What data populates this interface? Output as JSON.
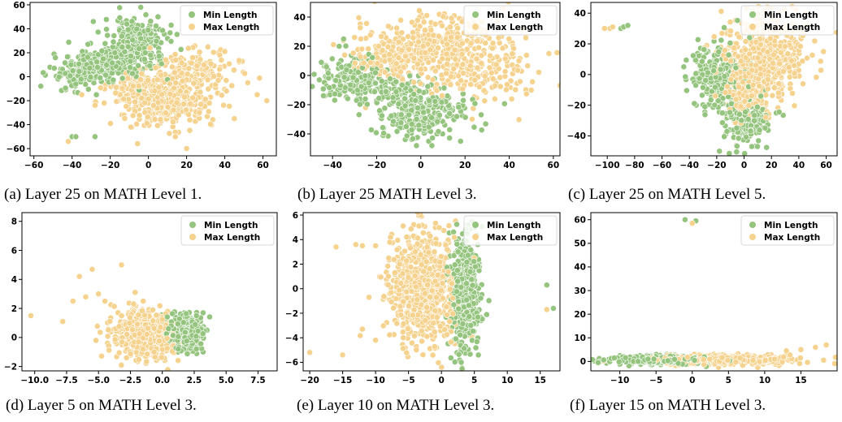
{
  "colors": {
    "min": "#94c47d",
    "max": "#f5d28e",
    "edge": "#ffffff"
  },
  "legend": [
    "Min Length",
    "Max Length"
  ],
  "chart_data": [
    {
      "type": "scatter",
      "caption": "(a) Layer 25 on MATH Level 1.",
      "xlim": [
        -62,
        67
      ],
      "ylim": [
        -66,
        62
      ],
      "xticks": [
        -60,
        -40,
        -20,
        0,
        20,
        40,
        60
      ],
      "yticks": [
        -60,
        -40,
        -20,
        0,
        20,
        40,
        60
      ],
      "tick_labels_x": [
        "−60",
        "−40",
        "−20",
        "0",
        "20",
        "40",
        "60"
      ],
      "tick_labels_y": [
        "−60",
        "−40",
        "−20",
        "0",
        "20",
        "40",
        "60"
      ],
      "series": [
        {
          "name": "Min Length",
          "n": 520,
          "clusters": [
            {
              "cx": -20,
              "cy": 12,
              "sx": 10,
              "sy": 8,
              "w": 0.45
            },
            {
              "cx": -5,
              "cy": 30,
              "sx": 8,
              "sy": 10,
              "w": 0.35
            },
            {
              "cx": -38,
              "cy": 2,
              "sx": 7,
              "sy": 6,
              "w": 0.2
            }
          ],
          "extra": [
            [
              -4,
              58
            ],
            [
              -40,
              -50
            ],
            [
              -38,
              -50
            ],
            [
              -28,
              -50
            ],
            [
              -54,
              2
            ],
            [
              5,
              50
            ]
          ]
        },
        {
          "name": "Max Length",
          "n": 560,
          "clusters": [
            {
              "cx": 10,
              "cy": -20,
              "sx": 12,
              "sy": 12,
              "w": 0.55
            },
            {
              "cx": 25,
              "cy": 5,
              "sx": 12,
              "sy": 10,
              "w": 0.3
            },
            {
              "cx": -10,
              "cy": -10,
              "sx": 8,
              "sy": 8,
              "w": 0.15
            }
          ],
          "extra": [
            [
              -42,
              -54
            ],
            [
              20,
              -60
            ],
            [
              45,
              -35
            ],
            [
              62,
              -20
            ],
            [
              57,
              -15
            ],
            [
              52,
              -5
            ]
          ]
        }
      ]
    },
    {
      "type": "scatter",
      "caption": "(b) Layer 25 MATH Level 3.",
      "xlim": [
        -50,
        63
      ],
      "ylim": [
        -55,
        50
      ],
      "xticks": [
        -40,
        -20,
        0,
        20,
        40,
        60
      ],
      "yticks": [
        -40,
        -20,
        0,
        20,
        40
      ],
      "tick_labels_x": [
        "−40",
        "−20",
        "0",
        "20",
        "40",
        "60"
      ],
      "tick_labels_y": [
        "−40",
        "−20",
        "0",
        "20",
        "40"
      ],
      "series": [
        {
          "name": "Min Length",
          "n": 480,
          "clusters": [
            {
              "cx": -30,
              "cy": -3,
              "sx": 8,
              "sy": 8,
              "w": 0.4
            },
            {
              "cx": 0,
              "cy": -25,
              "sx": 10,
              "sy": 9,
              "w": 0.45
            },
            {
              "cx": -10,
              "cy": -10,
              "sx": 6,
              "sy": 6,
              "w": 0.15
            }
          ],
          "extra": [
            [
              -37,
              20
            ],
            [
              -35,
              25
            ],
            [
              -2,
              -48
            ],
            [
              5,
              -48
            ],
            [
              18,
              -45
            ],
            [
              -46,
              -3
            ]
          ]
        },
        {
          "name": "Max Length",
          "n": 620,
          "clusters": [
            {
              "cx": 5,
              "cy": 20,
              "sx": 16,
              "sy": 10,
              "w": 0.5
            },
            {
              "cx": 25,
              "cy": 5,
              "sx": 14,
              "sy": 12,
              "w": 0.35
            },
            {
              "cx": -15,
              "cy": 12,
              "sx": 8,
              "sy": 8,
              "w": 0.15
            }
          ],
          "extra": [
            [
              58,
              15
            ],
            [
              50,
              -10
            ],
            [
              0,
              42
            ],
            [
              -25,
              -22
            ]
          ]
        }
      ]
    },
    {
      "type": "scatter",
      "caption": "(c) Layer 25 on MATH Level 5.",
      "xlim": [
        -112,
        68
      ],
      "ylim": [
        -53,
        47
      ],
      "xticks": [
        -100,
        -80,
        -60,
        -40,
        -20,
        0,
        20,
        40,
        60
      ],
      "yticks": [
        -40,
        -20,
        0,
        20,
        40
      ],
      "tick_labels_x": [
        "−100",
        "−80",
        "−60",
        "−40",
        "−20",
        "0",
        "20",
        "40",
        "60"
      ],
      "tick_labels_y": [
        "−40",
        "−20",
        "0",
        "20",
        "40"
      ],
      "series": [
        {
          "name": "Min Length",
          "n": 420,
          "clusters": [
            {
              "cx": -20,
              "cy": 0,
              "sx": 10,
              "sy": 10,
              "w": 0.55
            },
            {
              "cx": 0,
              "cy": -30,
              "sx": 9,
              "sy": 8,
              "w": 0.45
            }
          ],
          "extra": [
            [
              -88,
              31
            ],
            [
              -85,
              32
            ],
            [
              -90,
              30
            ],
            [
              -18,
              -50
            ],
            [
              -35,
              -20
            ]
          ]
        },
        {
          "name": "Max Length",
          "n": 620,
          "clusters": [
            {
              "cx": 15,
              "cy": 10,
              "sx": 15,
              "sy": 14,
              "w": 0.7
            },
            {
              "cx": 0,
              "cy": -10,
              "sx": 8,
              "sy": 10,
              "w": 0.3
            }
          ],
          "extra": [
            [
              -102,
              30
            ],
            [
              -98,
              30
            ],
            [
              -96,
              31
            ],
            [
              58,
              15
            ],
            [
              45,
              40
            ]
          ]
        }
      ]
    },
    {
      "type": "scatter",
      "caption": "(d) Layer 5 on MATH Level 3.",
      "xlim": [
        -11,
        9
      ],
      "ylim": [
        -2.3,
        8.6
      ],
      "xticks": [
        -10.0,
        -7.5,
        -5.0,
        -2.5,
        0.0,
        2.5,
        5.0,
        7.5
      ],
      "yticks": [
        -2,
        0,
        2,
        4,
        6,
        8
      ],
      "tick_labels_x": [
        "−10.0",
        "−7.5",
        "−5.0",
        "−2.5",
        "0.0",
        "2.5",
        "5.0",
        "7.5"
      ],
      "tick_labels_y": [
        "−2",
        "0",
        "2",
        "4",
        "6",
        "8"
      ],
      "series": [
        {
          "name": "Min Length",
          "n": 330,
          "clusters": [
            {
              "cx": 2.0,
              "cy": 0.2,
              "sx": 0.6,
              "sy": 0.7,
              "w": 0.7
            },
            {
              "cx": 1.0,
              "cy": 0.5,
              "sx": 0.5,
              "sy": 0.6,
              "w": 0.3
            }
          ],
          "extra": [
            [
              3.2,
              1.7
            ],
            [
              3.5,
              0.5
            ],
            [
              3.2,
              -1.0
            ]
          ]
        },
        {
          "name": "Max Length",
          "n": 650,
          "clusters": [
            {
              "cx": -1.7,
              "cy": 0.3,
              "sx": 1.1,
              "sy": 0.8,
              "w": 0.7
            },
            {
              "cx": -0.5,
              "cy": 0.0,
              "sx": 0.8,
              "sy": 0.7,
              "w": 0.3
            }
          ],
          "extra": [
            [
              -10.3,
              1.5
            ],
            [
              -7.8,
              1.1
            ],
            [
              -6.5,
              4.2
            ],
            [
              -5.5,
              4.7
            ],
            [
              -3.2,
              5.0
            ],
            [
              -6.0,
              2.8
            ],
            [
              -7.0,
              2.5
            ],
            [
              -5.0,
              3.0
            ],
            [
              -4.5,
              2.5
            ],
            [
              -1.5,
              2.5
            ],
            [
              -5.2,
              -0.2
            ]
          ]
        }
      ]
    },
    {
      "type": "scatter",
      "caption": "(e) Layer 10 on MATH Level 3.",
      "xlim": [
        -21,
        18
      ],
      "ylim": [
        -6.7,
        6.2
      ],
      "xticks": [
        -20,
        -15,
        -10,
        -5,
        0,
        5,
        10,
        15
      ],
      "yticks": [
        -6,
        -4,
        -2,
        0,
        2,
        4,
        6
      ],
      "tick_labels_x": [
        "−20",
        "−15",
        "−10",
        "−5",
        "0",
        "5",
        "10",
        "15"
      ],
      "tick_labels_y": [
        "−6",
        "−4",
        "−2",
        "0",
        "2",
        "4",
        "6"
      ],
      "series": [
        {
          "name": "Min Length",
          "n": 420,
          "clusters": [
            {
              "cx": 3.5,
              "cy": 0,
              "sx": 1.1,
              "sy": 2.4,
              "w": 1.0
            }
          ],
          "extra": [
            [
              16,
              0.3
            ],
            [
              17,
              -1.6
            ],
            [
              3,
              -6.0
            ],
            [
              4,
              5.2
            ],
            [
              6,
              -2.6
            ]
          ]
        },
        {
          "name": "Max Length",
          "n": 700,
          "clusters": [
            {
              "cx": -3,
              "cy": 0,
              "sx": 2.8,
              "sy": 2.3,
              "w": 1.0
            }
          ],
          "extra": [
            [
              -20,
              -5.2
            ],
            [
              -16,
              3.4
            ],
            [
              -15,
              -5.4
            ],
            [
              -13,
              3.6
            ],
            [
              -12,
              -3.3
            ],
            [
              -11,
              -0.7
            ],
            [
              -10,
              -4.2
            ],
            [
              -10,
              3.5
            ],
            [
              -8,
              2.5
            ],
            [
              -12,
              3.5
            ],
            [
              0,
              -6.4
            ],
            [
              16,
              -1.7
            ]
          ]
        }
      ]
    },
    {
      "type": "scatter",
      "caption": "(f) Layer 15 on MATH Level 3.",
      "xlim": [
        -14,
        20
      ],
      "ylim": [
        -4,
        63
      ],
      "xticks": [
        -10,
        -5,
        0,
        5,
        10,
        15
      ],
      "yticks": [
        0,
        10,
        20,
        30,
        40,
        50,
        60
      ],
      "tick_labels_x": [
        "−10",
        "−5",
        "0",
        "5",
        "10",
        "15"
      ],
      "tick_labels_y": [
        "0",
        "10",
        "20",
        "30",
        "40",
        "50",
        "60"
      ],
      "series": [
        {
          "name": "Min Length",
          "n": 380,
          "clusters": [
            {
              "cx": -5,
              "cy": 0.8,
              "sx": 3.2,
              "sy": 0.9,
              "w": 1.0
            }
          ],
          "extra": [
            [
              -13,
              -0.5
            ],
            [
              -1,
              60
            ],
            [
              0.5,
              59.5
            ]
          ]
        },
        {
          "name": "Max Length",
          "n": 540,
          "clusters": [
            {
              "cx": 4,
              "cy": 0.6,
              "sx": 5.0,
              "sy": 1.0,
              "w": 1.0
            }
          ],
          "extra": [
            [
              0,
              58.5
            ],
            [
              18.5,
              7
            ],
            [
              17,
              6
            ],
            [
              15,
              5
            ],
            [
              13,
              4.5
            ]
          ]
        }
      ]
    }
  ]
}
